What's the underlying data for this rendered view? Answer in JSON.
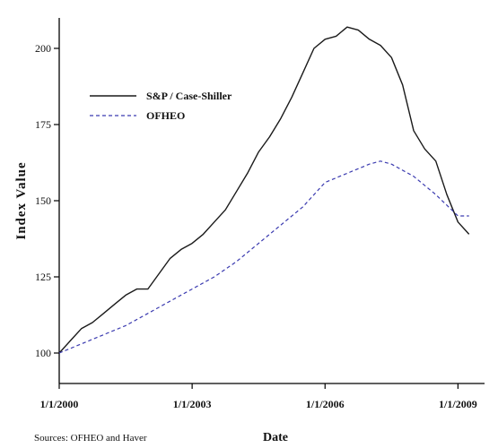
{
  "chart_data": {
    "type": "line",
    "xlabel": "Date",
    "ylabel": "Index Value",
    "xlim": [
      2000.0,
      2009.6
    ],
    "ylim": [
      90,
      210
    ],
    "x_ticks": [
      {
        "value": 2000,
        "label": "1/1/2000"
      },
      {
        "value": 2003,
        "label": "1/1/2003"
      },
      {
        "value": 2006,
        "label": "1/1/2006"
      },
      {
        "value": 2009,
        "label": "1/1/2009"
      }
    ],
    "y_ticks": [
      {
        "value": 100,
        "label": "100"
      },
      {
        "value": 125,
        "label": "125"
      },
      {
        "value": 150,
        "label": "150"
      },
      {
        "value": 175,
        "label": "175"
      },
      {
        "value": 200,
        "label": "200"
      }
    ],
    "grid": false,
    "legend_position": "upper-left",
    "series": [
      {
        "name": "S&P / Case-Shiller",
        "style": "solid",
        "color": "#1a1a1a",
        "x": [
          2000.0,
          2000.25,
          2000.5,
          2000.75,
          2001.0,
          2001.25,
          2001.5,
          2001.75,
          2002.0,
          2002.25,
          2002.5,
          2002.75,
          2003.0,
          2003.25,
          2003.5,
          2003.75,
          2004.0,
          2004.25,
          2004.5,
          2004.75,
          2005.0,
          2005.25,
          2005.5,
          2005.75,
          2006.0,
          2006.25,
          2006.5,
          2006.75,
          2007.0,
          2007.25,
          2007.5,
          2007.75,
          2008.0,
          2008.25,
          2008.5,
          2008.75,
          2009.0,
          2009.25
        ],
        "y": [
          100,
          104,
          108,
          110,
          113,
          116,
          119,
          121,
          121,
          126,
          131,
          134,
          136,
          139,
          143,
          147,
          153,
          159,
          166,
          171,
          177,
          184,
          192,
          200,
          203,
          204,
          207,
          206,
          203,
          201,
          197,
          188,
          173,
          167,
          163,
          152,
          143,
          139
        ]
      },
      {
        "name": "OFHEO",
        "style": "dashed",
        "color": "#3b3bb0",
        "x": [
          2000.0,
          2000.5,
          2001.0,
          2001.5,
          2002.0,
          2002.5,
          2003.0,
          2003.5,
          2004.0,
          2004.5,
          2005.0,
          2005.5,
          2006.0,
          2006.5,
          2007.0,
          2007.25,
          2007.5,
          2008.0,
          2008.5,
          2009.0,
          2009.25
        ],
        "y": [
          100,
          103,
          106,
          109,
          113,
          117,
          121,
          125,
          130,
          136,
          142,
          148,
          156,
          159,
          162,
          163,
          162,
          158,
          152,
          145,
          145
        ]
      }
    ]
  },
  "source_note": "Sources: OFHEO and Haver"
}
